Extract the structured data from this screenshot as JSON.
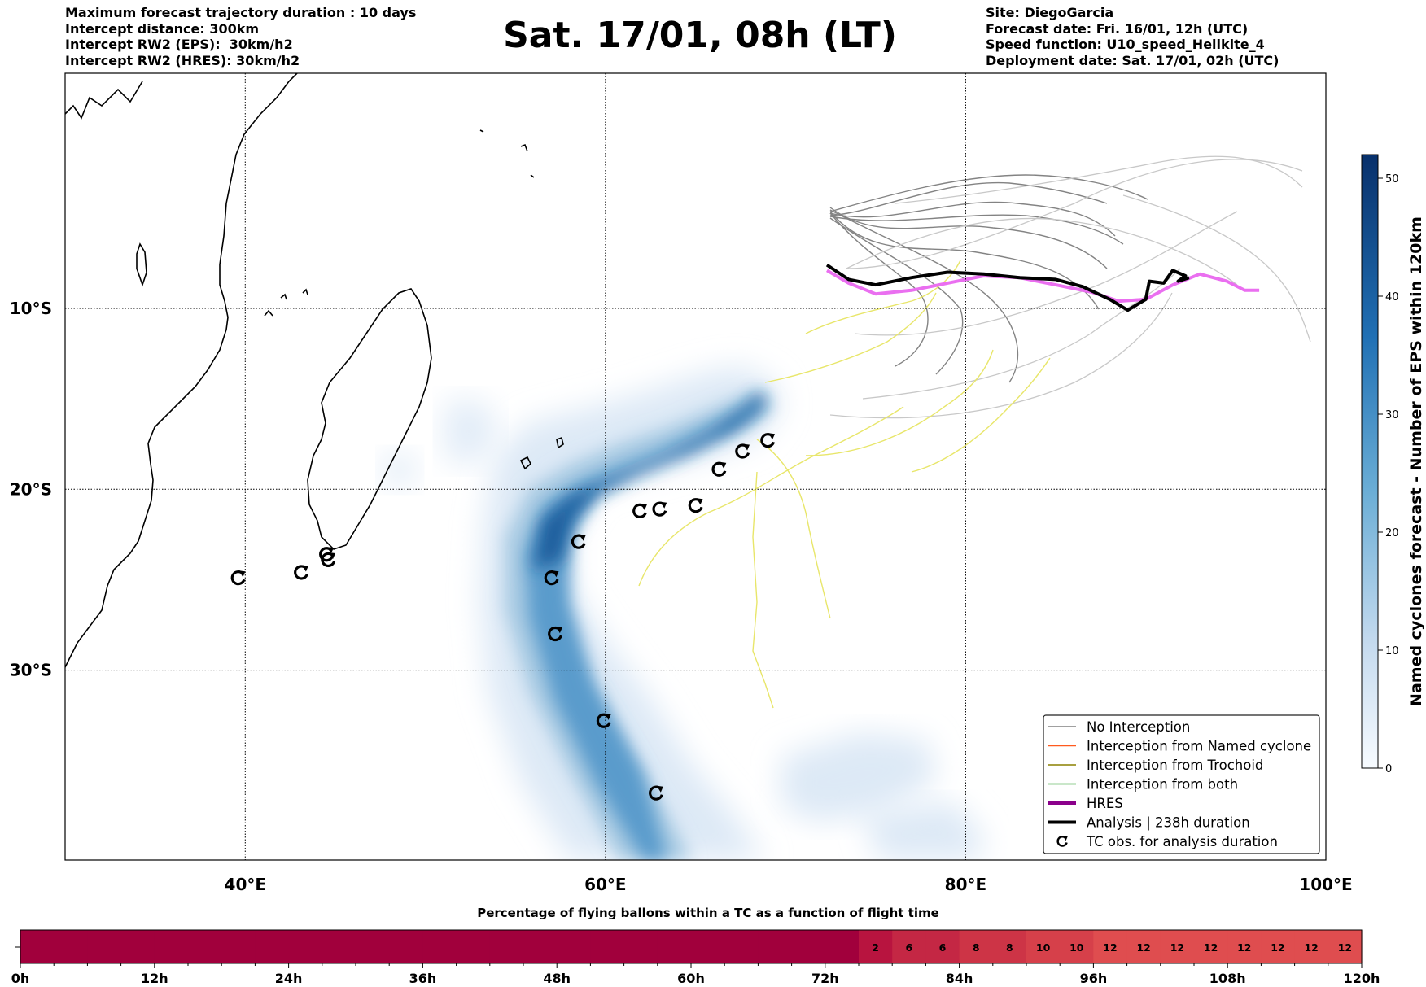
{
  "header": {
    "info_left": [
      "Maximum forecast trajectory duration : 10 days",
      "Intercept distance: 300km",
      "Intercept RW2 (EPS):  30km/h2",
      "Intercept RW2 (HRES): 30km/h2"
    ],
    "title": "Sat. 17/01, 08h (LT)",
    "info_right": [
      "Site: DiegoGarcia",
      "Forecast date: Fri. 16/01, 12h (UTC)",
      "Speed function: U10_speed_Helikite_4",
      "Deployment date: Sat. 17/01, 02h (UTC)"
    ]
  },
  "chart_data": [
    {
      "type": "map",
      "region": "South-West Indian Ocean",
      "xlim": [
        30,
        100
      ],
      "ylim": [
        -40.5,
        3.0
      ],
      "x_ticks": [
        {
          "value": 40,
          "label": "40°E"
        },
        {
          "value": 60,
          "label": "60°E"
        },
        {
          "value": 80,
          "label": "80°E"
        },
        {
          "value": 100,
          "label": "100°E"
        }
      ],
      "y_ticks": [
        {
          "value": -10,
          "label": "10°S"
        },
        {
          "value": -20,
          "label": "20°S"
        },
        {
          "value": -30,
          "label": "30°S"
        }
      ],
      "grid": true,
      "legend_position": "bottom-right",
      "legend": [
        {
          "label": "No Interception",
          "color": "#808080",
          "style": "thin"
        },
        {
          "label": "Interception from Named cyclone",
          "color": "#ff5a1f",
          "style": "thin"
        },
        {
          "label": "Interception from Trochoid",
          "color": "#8b8000",
          "style": "thin"
        },
        {
          "label": "Interception from both",
          "color": "#2ca02c",
          "style": "thin"
        },
        {
          "label": "HRES",
          "color": "#8b008b",
          "style": "thick"
        },
        {
          "label": "Analysis | 238h duration",
          "color": "#000000",
          "style": "thick"
        },
        {
          "label": "TC obs. for analysis duration",
          "color": "#000000",
          "style": "marker"
        }
      ],
      "colorbar": {
        "label": "Named cyclones forecast - Number of EPS within 120km",
        "min": 0,
        "max": 52,
        "ticks": [
          0,
          10,
          20,
          30,
          40,
          50
        ],
        "colormap": "Blues"
      },
      "tc_observations": [
        {
          "lon": 69.0,
          "lat": -17.3
        },
        {
          "lon": 67.6,
          "lat": -17.9
        },
        {
          "lon": 66.3,
          "lat": -18.9
        },
        {
          "lon": 65.0,
          "lat": -20.9
        },
        {
          "lon": 63.0,
          "lat": -21.1
        },
        {
          "lon": 61.9,
          "lat": -21.2
        },
        {
          "lon": 58.5,
          "lat": -22.9
        },
        {
          "lon": 57.0,
          "lat": -24.9
        },
        {
          "lon": 57.2,
          "lat": -28.0
        },
        {
          "lon": 59.9,
          "lat": -32.8
        },
        {
          "lon": 62.8,
          "lat": -36.8
        },
        {
          "lon": 44.6,
          "lat": -23.9
        },
        {
          "lon": 44.5,
          "lat": -23.6
        },
        {
          "lon": 43.1,
          "lat": -24.6
        },
        {
          "lon": 39.6,
          "lat": -24.9
        }
      ],
      "hres_track": [
        [
          72.3,
          -7.9
        ],
        [
          73.5,
          -8.6
        ],
        [
          75.0,
          -9.2
        ],
        [
          77.0,
          -9.0
        ],
        [
          79.0,
          -8.6
        ],
        [
          81.0,
          -8.2
        ],
        [
          83.0,
          -8.3
        ],
        [
          85.0,
          -8.7
        ],
        [
          87.0,
          -9.1
        ],
        [
          88.5,
          -9.6
        ],
        [
          90.0,
          -9.5
        ],
        [
          91.5,
          -8.7
        ],
        [
          93.0,
          -8.1
        ],
        [
          94.5,
          -8.5
        ],
        [
          95.5,
          -9.0
        ],
        [
          96.3,
          -9.0
        ]
      ],
      "analysis_track": [
        [
          72.3,
          -7.6
        ],
        [
          73.5,
          -8.4
        ],
        [
          75.0,
          -8.7
        ],
        [
          77.0,
          -8.3
        ],
        [
          79.0,
          -8.0
        ],
        [
          81.0,
          -8.1
        ],
        [
          83.0,
          -8.3
        ],
        [
          85.0,
          -8.4
        ],
        [
          86.5,
          -8.8
        ],
        [
          88.0,
          -9.5
        ],
        [
          89.0,
          -10.1
        ],
        [
          90.0,
          -9.5
        ],
        [
          90.2,
          -8.5
        ],
        [
          91.0,
          -8.6
        ],
        [
          91.5,
          -7.9
        ],
        [
          92.2,
          -8.2
        ],
        [
          91.8,
          -8.5
        ],
        [
          92.4,
          -8.3
        ]
      ]
    },
    {
      "type": "heatmap",
      "title": "Percentage of flying ballons within a TC as a function of flight time",
      "xlim": [
        0,
        120
      ],
      "x_ticks": [
        "0h",
        "12h",
        "24h",
        "36h",
        "48h",
        "60h",
        "72h",
        "84h",
        "96h",
        "108h",
        "120h"
      ],
      "bin_hours": 3,
      "values": [
        0,
        0,
        0,
        0,
        0,
        0,
        0,
        0,
        0,
        0,
        0,
        0,
        0,
        0,
        0,
        0,
        0,
        0,
        0,
        0,
        0,
        0,
        0,
        0,
        0,
        2,
        6,
        6,
        8,
        8,
        10,
        10,
        12,
        12,
        12,
        12,
        12,
        12,
        12,
        12
      ]
    }
  ]
}
